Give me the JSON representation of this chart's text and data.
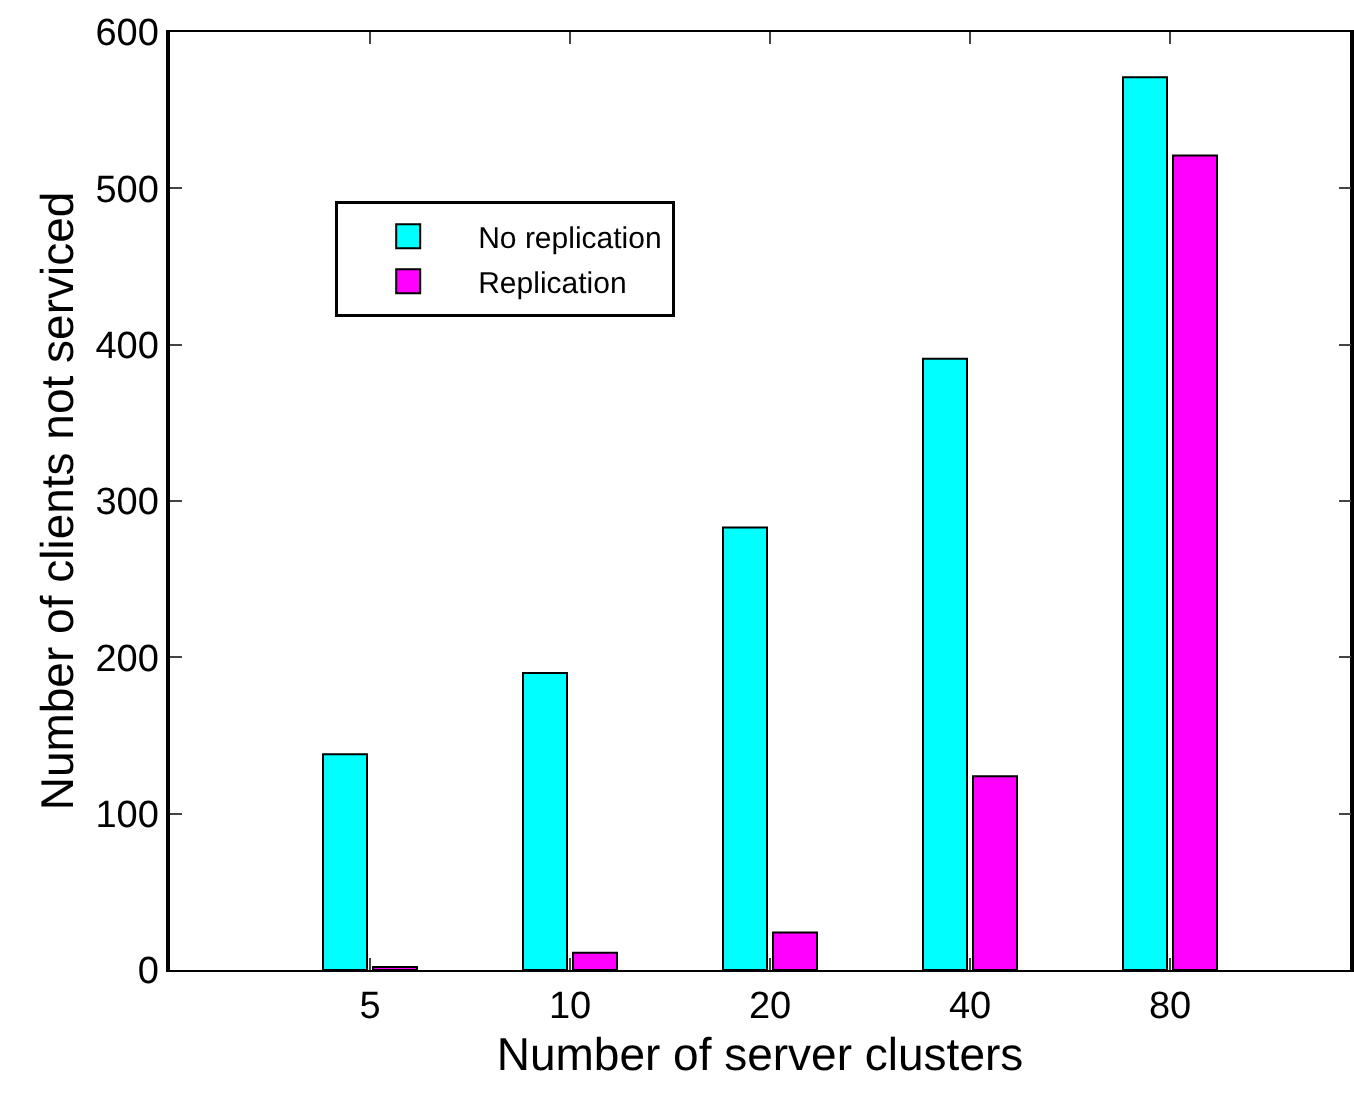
{
  "chart_data": {
    "type": "bar",
    "xlabel": "Number of server clusters",
    "ylabel": "Number of clients not serviced",
    "categories": [
      "5",
      "10",
      "20",
      "40",
      "80"
    ],
    "series": [
      {
        "name": "No replication",
        "color": "#00ffff",
        "values": [
          138,
          190,
          283,
          391,
          571
        ]
      },
      {
        "name": "Replication",
        "color": "#ff00ff",
        "values": [
          2,
          11,
          24,
          124,
          521
        ]
      }
    ],
    "ylim": [
      0,
      600
    ],
    "yticks": [
      0,
      100,
      200,
      300,
      400,
      500,
      600
    ],
    "grid": false,
    "legend": "top left"
  }
}
